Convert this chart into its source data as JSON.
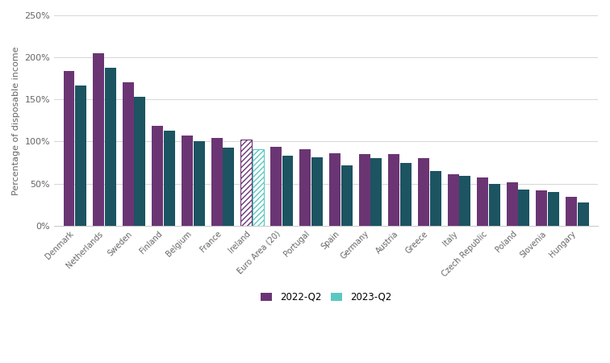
{
  "categories": [
    "Denmark",
    "Netherlands",
    "Sweden",
    "Finland",
    "Belgium",
    "France",
    "Ireland",
    "Euro Area (20)",
    "Portugal",
    "Spain",
    "Germany",
    "Austria",
    "Greece",
    "Italy",
    "Czech Republic",
    "Poland",
    "Slovenia",
    "Hungary"
  ],
  "values_2022q2": [
    184,
    205,
    170,
    119,
    107,
    104,
    102,
    94,
    91,
    86,
    85,
    85,
    80,
    61,
    57,
    52,
    42,
    34
  ],
  "values_2023q2": [
    167,
    188,
    153,
    113,
    100,
    93,
    91,
    83,
    81,
    72,
    80,
    75,
    65,
    59,
    50,
    43,
    40,
    28
  ],
  "color_2022q2": "#6B3574",
  "color_2023q2": "#5BC8C0",
  "color_2023q2_dark": "#1C5461",
  "ylabel": "Percentage of disposable income",
  "ylim": [
    0,
    250
  ],
  "yticks": [
    0,
    50,
    100,
    150,
    200,
    250
  ],
  "ytick_labels": [
    "0%",
    "50%",
    "100%",
    "150%",
    "200%",
    "250%"
  ],
  "legend_label_1": "2022-Q2",
  "legend_label_2": "2023-Q2",
  "background_color": "#ffffff",
  "grid_color": "#d0d0d0"
}
